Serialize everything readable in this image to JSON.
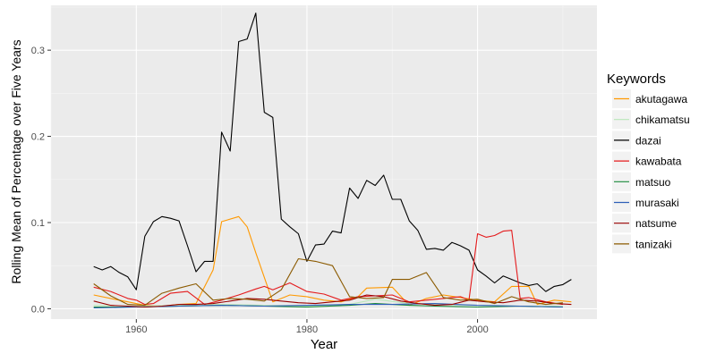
{
  "chart_data": {
    "type": "line",
    "title": "",
    "xlabel": "Year",
    "ylabel": "Rolling Mean of Percentage over Five Years",
    "xlim": [
      1950,
      2014
    ],
    "ylim": [
      -0.012,
      0.352
    ],
    "xticks": [
      1960,
      1980,
      2000
    ],
    "yticks": [
      0.0,
      0.1,
      0.2,
      0.3
    ],
    "ytick_labels": [
      "0.0",
      "0.1",
      "0.2",
      "0.3"
    ],
    "grid": true,
    "legend_placement": "right",
    "legend_title": "Keywords",
    "series": [
      {
        "name": "akutagawa",
        "color": "#FF9900",
        "x": [
          1955,
          1957,
          1959,
          1961,
          1963,
          1965,
          1967,
          1969,
          1970,
          1972,
          1973,
          1974,
          1976,
          1978,
          1980,
          1982,
          1984,
          1986,
          1987,
          1990,
          1992,
          1994,
          1996,
          1998,
          2000,
          2002,
          2004,
          2005,
          2006,
          2007,
          2009,
          2011
        ],
        "y": [
          0.016,
          0.012,
          0.008,
          0.004,
          0.003,
          0.005,
          0.006,
          0.045,
          0.101,
          0.107,
          0.095,
          0.065,
          0.008,
          0.016,
          0.014,
          0.01,
          0.008,
          0.014,
          0.024,
          0.025,
          0.004,
          0.012,
          0.016,
          0.013,
          0.01,
          0.008,
          0.026,
          0.026,
          0.026,
          0.005,
          0.01,
          0.008
        ]
      },
      {
        "name": "chikamatsu",
        "color": "#B8E6B8",
        "x": [
          1955,
          1960,
          1965,
          1970,
          1975,
          1980,
          1985,
          1988,
          1992,
          1996,
          2000,
          2005,
          2010
        ],
        "y": [
          0.004,
          0.003,
          0.004,
          0.005,
          0.004,
          0.003,
          0.005,
          0.011,
          0.006,
          0.005,
          0.004,
          0.003,
          0.003
        ]
      },
      {
        "name": "dazai",
        "color": "#000000",
        "x": [
          1955,
          1956,
          1957,
          1958,
          1959,
          1960,
          1961,
          1962,
          1963,
          1964,
          1965,
          1966,
          1967,
          1968,
          1969,
          1970,
          1971,
          1972,
          1973,
          1974,
          1975,
          1976,
          1977,
          1978,
          1979,
          1980,
          1981,
          1982,
          1983,
          1984,
          1985,
          1986,
          1987,
          1988,
          1989,
          1990,
          1991,
          1992,
          1993,
          1994,
          1995,
          1996,
          1997,
          1998,
          1999,
          2000,
          2001,
          2002,
          2003,
          2004,
          2005,
          2006,
          2007,
          2008,
          2009,
          2010,
          2011
        ],
        "y": [
          0.049,
          0.045,
          0.049,
          0.042,
          0.037,
          0.022,
          0.084,
          0.101,
          0.107,
          0.105,
          0.102,
          0.073,
          0.043,
          0.055,
          0.055,
          0.205,
          0.183,
          0.31,
          0.313,
          0.343,
          0.228,
          0.222,
          0.104,
          0.095,
          0.087,
          0.055,
          0.074,
          0.075,
          0.09,
          0.088,
          0.14,
          0.128,
          0.149,
          0.143,
          0.155,
          0.127,
          0.127,
          0.102,
          0.091,
          0.069,
          0.07,
          0.068,
          0.077,
          0.073,
          0.068,
          0.045,
          0.038,
          0.03,
          0.038,
          0.034,
          0.03,
          0.027,
          0.029,
          0.02,
          0.026,
          0.028,
          0.034
        ]
      },
      {
        "name": "kawabata",
        "color": "#E41A1C",
        "x": [
          1955,
          1957,
          1959,
          1960,
          1961,
          1962,
          1964,
          1966,
          1968,
          1970,
          1972,
          1974,
          1975,
          1976,
          1978,
          1980,
          1982,
          1984,
          1986,
          1988,
          1990,
          1992,
          1994,
          1996,
          1998,
          1999,
          2000,
          2001,
          2002,
          2003,
          2004,
          2005,
          2006,
          2008,
          2010
        ],
        "y": [
          0.025,
          0.02,
          0.012,
          0.01,
          0.005,
          0.006,
          0.018,
          0.02,
          0.005,
          0.01,
          0.016,
          0.023,
          0.026,
          0.022,
          0.03,
          0.02,
          0.017,
          0.01,
          0.014,
          0.015,
          0.016,
          0.008,
          0.01,
          0.012,
          0.014,
          0.01,
          0.087,
          0.083,
          0.085,
          0.09,
          0.091,
          0.012,
          0.013,
          0.008,
          0.005
        ]
      },
      {
        "name": "matsuo",
        "color": "#1B8A3C",
        "x": [
          1955,
          1960,
          1965,
          1970,
          1975,
          1980,
          1985,
          1988,
          1990,
          1992,
          1995,
          2000,
          2005,
          2010
        ],
        "y": [
          0.002,
          0.002,
          0.003,
          0.004,
          0.003,
          0.002,
          0.004,
          0.006,
          0.005,
          0.004,
          0.003,
          0.002,
          0.003,
          0.002
        ]
      },
      {
        "name": "murasaki",
        "color": "#2F5FB8",
        "x": [
          1955,
          1960,
          1965,
          1970,
          1975,
          1980,
          1985,
          1990,
          1995,
          2000,
          2005,
          2010
        ],
        "y": [
          0.001,
          0.002,
          0.003,
          0.004,
          0.003,
          0.004,
          0.005,
          0.005,
          0.006,
          0.004,
          0.003,
          0.002
        ]
      },
      {
        "name": "natsume",
        "color": "#990000",
        "x": [
          1955,
          1957,
          1959,
          1961,
          1963,
          1965,
          1967,
          1969,
          1971,
          1973,
          1975,
          1977,
          1979,
          1981,
          1983,
          1985,
          1987,
          1989,
          1991,
          1993,
          1995,
          1997,
          1999,
          2001,
          2003,
          2005,
          2007,
          2009,
          2011
        ],
        "y": [
          0.009,
          0.004,
          0.003,
          0.002,
          0.003,
          0.005,
          0.005,
          0.006,
          0.009,
          0.012,
          0.011,
          0.009,
          0.007,
          0.006,
          0.008,
          0.01,
          0.016,
          0.014,
          0.009,
          0.006,
          0.004,
          0.005,
          0.01,
          0.008,
          0.007,
          0.01,
          0.009,
          0.006,
          0.005
        ]
      },
      {
        "name": "tanizaki",
        "color": "#8B5A00",
        "x": [
          1955,
          1957,
          1959,
          1961,
          1963,
          1965,
          1967,
          1969,
          1971,
          1973,
          1975,
          1977,
          1979,
          1981,
          1983,
          1985,
          1987,
          1989,
          1990,
          1992,
          1994,
          1996,
          1998,
          2000,
          2002,
          2004,
          2006,
          2008,
          2010
        ],
        "y": [
          0.029,
          0.015,
          0.005,
          0.004,
          0.018,
          0.024,
          0.029,
          0.01,
          0.012,
          0.011,
          0.009,
          0.022,
          0.058,
          0.055,
          0.05,
          0.014,
          0.012,
          0.013,
          0.034,
          0.034,
          0.042,
          0.013,
          0.01,
          0.011,
          0.006,
          0.014,
          0.008,
          0.005,
          0.007
        ]
      }
    ]
  }
}
